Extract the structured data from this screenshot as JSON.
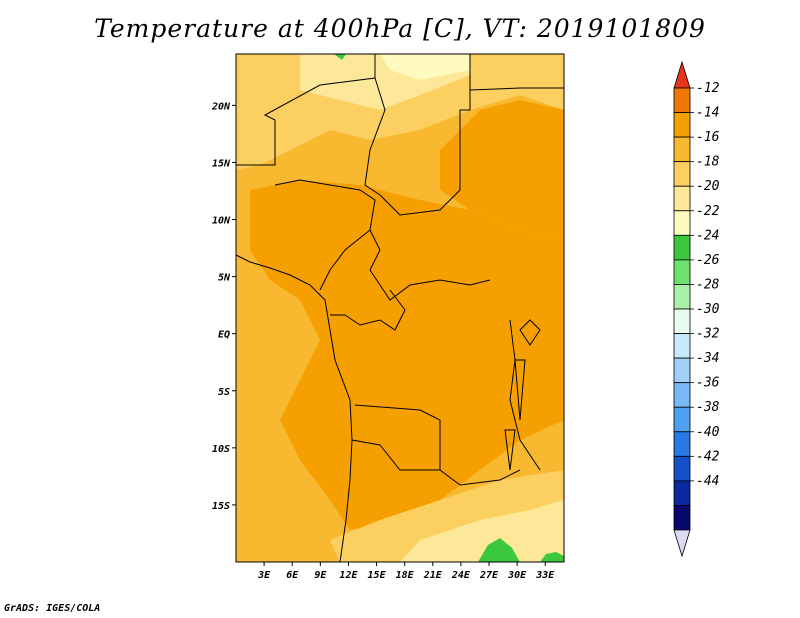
{
  "title": "Temperature at 400hPa [C], VT: 2019101809",
  "footer": "GrADS: IGES/COLA",
  "map": {
    "lon_range": [
      0,
      35
    ],
    "lat_range": [
      -20,
      24.5
    ],
    "x_ticks": [
      {
        "lon": 3,
        "label": "3E"
      },
      {
        "lon": 6,
        "label": "6E"
      },
      {
        "lon": 9,
        "label": "9E"
      },
      {
        "lon": 12,
        "label": "12E"
      },
      {
        "lon": 15,
        "label": "15E"
      },
      {
        "lon": 18,
        "label": "18E"
      },
      {
        "lon": 21,
        "label": "21E"
      },
      {
        "lon": 24,
        "label": "24E"
      },
      {
        "lon": 27,
        "label": "27E"
      },
      {
        "lon": 30,
        "label": "30E"
      },
      {
        "lon": 33,
        "label": "33E"
      }
    ],
    "y_ticks": [
      {
        "lat": 20,
        "label": "20N"
      },
      {
        "lat": 15,
        "label": "15N"
      },
      {
        "lat": 10,
        "label": "10N"
      },
      {
        "lat": 5,
        "label": "5N"
      },
      {
        "lat": 0,
        "label": "EQ"
      },
      {
        "lat": -5,
        "label": "5S"
      },
      {
        "lat": -10,
        "label": "10S"
      },
      {
        "lat": -15,
        "label": "15S"
      }
    ]
  },
  "colorbar": {
    "levels": [
      "-12",
      "-14",
      "-16",
      "-18",
      "-20",
      "-22",
      "-24",
      "-26",
      "-28",
      "-30",
      "-32",
      "-34",
      "-36",
      "-38",
      "-40",
      "-42",
      "-44"
    ],
    "colors": [
      "#f07800",
      "#f5a000",
      "#f8b830",
      "#fcd060",
      "#fde89a",
      "#fefac0",
      "#3cc83c",
      "#6ee06e",
      "#aaf0aa",
      "#e8fcf0",
      "#c8e8fc",
      "#a0d0f8",
      "#78b8f4",
      "#50a0f0",
      "#2878e6",
      "#1450c8",
      "#0a28a0",
      "#08086e"
    ],
    "top_color": "#e8341c",
    "bottom_color": "#dcdcf4"
  }
}
